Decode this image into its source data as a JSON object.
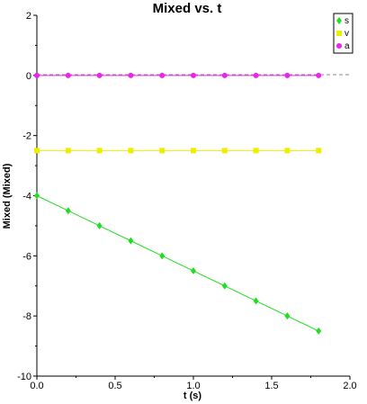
{
  "chart_data": {
    "type": "line",
    "title": "Mixed vs. t",
    "xlabel": "t (s)",
    "ylabel": "Mixed (Mixed)",
    "xlim": [
      0,
      2
    ],
    "ylim": [
      -10,
      2
    ],
    "x_ticks": [
      0,
      0.5,
      1,
      1.5,
      2
    ],
    "x_tick_labels": [
      "0.0",
      "0.5",
      "1.0",
      "1.5",
      "2.0"
    ],
    "y_ticks": [
      -10,
      -8,
      -6,
      -4,
      -2,
      0,
      2
    ],
    "y_tick_labels": [
      "-10",
      "-8",
      "-6",
      "-4",
      "-2",
      "0",
      "2"
    ],
    "grid": false,
    "legend_position": "top-right",
    "series": [
      {
        "name": "s",
        "color": "#22dd22",
        "marker": "diamond",
        "x": [
          0,
          0.2,
          0.4,
          0.6,
          0.8,
          1.0,
          1.2,
          1.4,
          1.6,
          1.8
        ],
        "y": [
          -4,
          -4.5,
          -5,
          -5.5,
          -6,
          -6.5,
          -7,
          -7.5,
          -8,
          -8.5
        ]
      },
      {
        "name": "v",
        "color": "#eeee00",
        "marker": "square",
        "x": [
          0,
          0.2,
          0.4,
          0.6,
          0.8,
          1.0,
          1.2,
          1.4,
          1.6,
          1.8
        ],
        "y": [
          -2.5,
          -2.5,
          -2.5,
          -2.5,
          -2.5,
          -2.5,
          -2.5,
          -2.5,
          -2.5,
          -2.5
        ]
      },
      {
        "name": "a",
        "color": "#ee22ee",
        "marker": "circle",
        "x": [
          0,
          0.2,
          0.4,
          0.6,
          0.8,
          1.0,
          1.2,
          1.4,
          1.6,
          1.8
        ],
        "y": [
          0,
          0,
          0,
          0,
          0,
          0,
          0,
          0,
          0,
          0
        ]
      }
    ]
  }
}
